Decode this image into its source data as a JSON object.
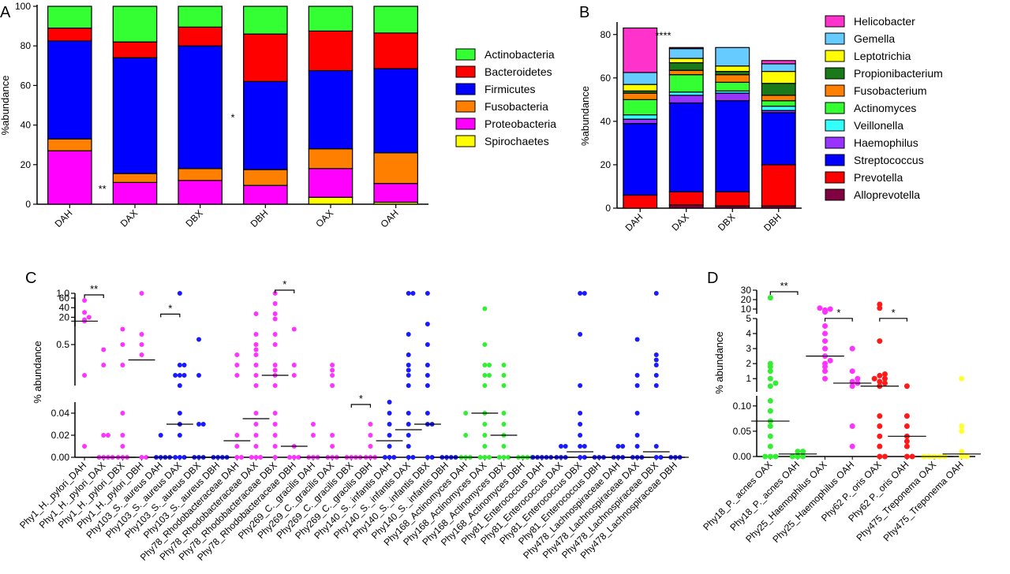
{
  "panels": {
    "A": {
      "label": "A",
      "type": "stacked-bar",
      "ylabel": "%abundance",
      "ylim": [
        0,
        100
      ],
      "yticks": [
        0,
        20,
        40,
        60,
        80,
        100
      ],
      "categories": [
        "DAH",
        "DAX",
        "DBX",
        "DBH",
        "OAX",
        "OAH"
      ],
      "series": [
        {
          "name": "Spirochaetes",
          "color": "#ffff00",
          "values": [
            0,
            0,
            0,
            0,
            3.5,
            1
          ]
        },
        {
          "name": "Proteobacteria",
          "color": "#ff00ff",
          "values": [
            27,
            11,
            12,
            9.5,
            14.5,
            9.5
          ]
        },
        {
          "name": "Fusobacteria",
          "color": "#ff8000",
          "values": [
            6,
            4.5,
            6,
            8,
            10,
            15.5
          ]
        },
        {
          "name": "Firmicutes",
          "color": "#0000ff",
          "values": [
            49.5,
            58.5,
            62,
            44.5,
            39.5,
            42.5
          ]
        },
        {
          "name": "Bacteroidetes",
          "color": "#ff0000",
          "values": [
            6.5,
            8,
            9.5,
            24,
            20,
            18
          ]
        },
        {
          "name": "Actinobacteria",
          "color": "#33ff33",
          "values": [
            11,
            18,
            10.5,
            14,
            12.5,
            13.5
          ]
        }
      ],
      "legend_order": [
        "Actinobacteria",
        "Bacteroidetes",
        "Firmicutes",
        "Fusobacteria",
        "Proteobacteria",
        "Spirochaetes"
      ],
      "annotations": [
        {
          "text": "**",
          "x_between": [
            "DAH",
            "DAX"
          ],
          "y": 6
        },
        {
          "text": "*",
          "x_between": [
            "DBX",
            "DBH"
          ],
          "y": 42
        }
      ]
    },
    "B": {
      "label": "B",
      "type": "stacked-bar",
      "ylabel": "%abundance",
      "ylim": [
        0,
        85
      ],
      "yticks": [
        0,
        20,
        40,
        60,
        80
      ],
      "categories": [
        "DAH",
        "DAX",
        "DBX",
        "DBH"
      ],
      "series": [
        {
          "name": "Alloprevotella",
          "color": "#800040",
          "values": [
            0,
            1.5,
            1,
            1
          ]
        },
        {
          "name": "Prevotella",
          "color": "#ff0000",
          "values": [
            6,
            6,
            6.5,
            19
          ]
        },
        {
          "name": "Streptococcus",
          "color": "#0000ff",
          "values": [
            33,
            41,
            42,
            24
          ]
        },
        {
          "name": "Haemophilus",
          "color": "#9933ff",
          "values": [
            2,
            3.5,
            3.5,
            1
          ]
        },
        {
          "name": "Veillonella",
          "color": "#33ffff",
          "values": [
            2,
            1.5,
            1,
            2
          ]
        },
        {
          "name": "Actinomyces",
          "color": "#33ff33",
          "values": [
            7,
            8,
            4,
            2.5
          ]
        },
        {
          "name": "Fusobacterium",
          "color": "#ff8000",
          "values": [
            3,
            2,
            3.5,
            2.5
          ]
        },
        {
          "name": "Propionibacterium",
          "color": "#1a7a1a",
          "values": [
            1,
            3.5,
            1.5,
            5.5
          ]
        },
        {
          "name": "Leptotrichia",
          "color": "#ffff00",
          "values": [
            3,
            2,
            2.5,
            5.5
          ]
        },
        {
          "name": "Gemella",
          "color": "#66ccff",
          "values": [
            5.5,
            4.5,
            8.5,
            3.5
          ]
        },
        {
          "name": "Helicobacter",
          "color": "#ff33cc",
          "values": [
            20.5,
            0.5,
            0,
            1.5
          ]
        }
      ],
      "legend_order": [
        "Helicobacter",
        "Gemella",
        "Leptotrichia",
        "Propionibacterium",
        "Fusobacterium",
        "Actinomyces",
        "Veillonella",
        "Haemophilus",
        "Streptococcus",
        "Prevotella",
        "Alloprevotella"
      ],
      "annotations": [
        {
          "text": "****",
          "x_between": [
            "DAH",
            "DAX"
          ],
          "y": 78
        }
      ]
    },
    "C": {
      "label": "C",
      "type": "scatter",
      "ylabel": "% abundance",
      "segments": [
        {
          "range": [
            0,
            0.05
          ],
          "ticks": [
            "0.00",
            "0.02",
            "0.04"
          ]
        },
        {
          "range": [
            0.1,
            1.0
          ],
          "ticks": [
            "0.5",
            "1.0"
          ]
        },
        {
          "range": [
            1,
            60
          ],
          "ticks": [
            "20",
            "40",
            "60"
          ]
        }
      ],
      "groups": [
        {
          "label": "Phy1_H._pylori_DAH",
          "color": "#ff33ff"
        },
        {
          "label": "Phy1_H._pylori_DAX",
          "color": "#ff33ff"
        },
        {
          "label": "Phy1_H._pylori_DBX",
          "color": "#ff33ff"
        },
        {
          "label": "Phy1_H._pylori_DBH",
          "color": "#ff33ff"
        },
        {
          "label": "Phy103_S._aureus DAH",
          "color": "#1a1aff"
        },
        {
          "label": "Phy103_S._aureus DAX",
          "color": "#1a1aff"
        },
        {
          "label": "Phy103_S._aureus DBX",
          "color": "#1a1aff"
        },
        {
          "label": "Phy103_S._aureus DBH",
          "color": "#1a1aff"
        },
        {
          "label": "Phy78_Rhodobacteraceae DAH",
          "color": "#ff33ff"
        },
        {
          "label": "Phy78_Rhodobacteraceae DAX",
          "color": "#ff33ff"
        },
        {
          "label": "Phy78_Rhodobacteraceae DBX",
          "color": "#ff33ff"
        },
        {
          "label": "Phy78_Rhodobacteraceae DBH",
          "color": "#ff33ff"
        },
        {
          "label": "Phy269_C._gracilis DAH",
          "color": "#ff33ff"
        },
        {
          "label": "Phy269_C._gracilis DAX",
          "color": "#ff33ff"
        },
        {
          "label": "Phy269_C._gracilis DBX",
          "color": "#ff33ff"
        },
        {
          "label": "Phy269_C._gracilis DBH",
          "color": "#ff33ff"
        },
        {
          "label": "Phy140_S._infantis DAH",
          "color": "#1a1aff"
        },
        {
          "label": "Phy140_S._infantis DAX",
          "color": "#1a1aff"
        },
        {
          "label": "Phy140_S._infantis DBX",
          "color": "#1a1aff"
        },
        {
          "label": "Phy140_S._infantis DBH",
          "color": "#1a1aff"
        },
        {
          "label": "Phy168_Actinomyces DAH",
          "color": "#33ee33"
        },
        {
          "label": "Phy168_Actinomyces DAX",
          "color": "#33ee33"
        },
        {
          "label": "Phy168_Actinomyces DBX",
          "color": "#33ee33"
        },
        {
          "label": "Phy168_Actinomyces DBH",
          "color": "#33ee33"
        },
        {
          "label": "Phy81_Enterococcus DAH",
          "color": "#1a1aff"
        },
        {
          "label": "Phy81_Enterococcus DAX",
          "color": "#1a1aff"
        },
        {
          "label": "Phy81_Enterococcus DBX",
          "color": "#1a1aff"
        },
        {
          "label": "Phy81_Enterococcus DBH",
          "color": "#1a1aff"
        },
        {
          "label": "Phy478_Lachnospiraceae DAH",
          "color": "#1a1aff"
        },
        {
          "label": "Phy478_Lachnospiraceae DAX",
          "color": "#1a1aff"
        },
        {
          "label": "Phy478_Lachnospiraceae DBX",
          "color": "#1a1aff"
        },
        {
          "label": "Phy478_Lachnospiraceae DBH",
          "color": "#1a1aff"
        }
      ],
      "points": [
        [
          0.01,
          0.2,
          12,
          15,
          20,
          30,
          55
        ],
        [
          0,
          0,
          0,
          0,
          0.02,
          0.02,
          0.3,
          0.45
        ],
        [
          0,
          0,
          0,
          0.01,
          0.02,
          0.04,
          0.3,
          0.5,
          0.65
        ],
        [
          0,
          0,
          0.4,
          0.5,
          0.6,
          1.0
        ],
        [
          0,
          0,
          0,
          0,
          0.02
        ],
        [
          0,
          0,
          0,
          0.02,
          0.03,
          0.04,
          0.1,
          0.2,
          0.2,
          0.2,
          0.3,
          0.3,
          1.0
        ],
        [
          0,
          0,
          0,
          0.03,
          0.03,
          0.2,
          0.55
        ],
        [
          0,
          0,
          0,
          0
        ],
        [
          0,
          0,
          0.01,
          0.02,
          0.2,
          0.3,
          0.4
        ],
        [
          0,
          0,
          0,
          0.01,
          0.02,
          0.03,
          0.04,
          0.1,
          0.2,
          0.3,
          0.4,
          0.45,
          0.5,
          0.6,
          0.8
        ],
        [
          0,
          0.01,
          0.02,
          0.03,
          0.04,
          0.1,
          0.2,
          0.25,
          0.3,
          0.5,
          0.6,
          0.75,
          0.8,
          0.9,
          1.0
        ],
        [
          0,
          0,
          0,
          0.01,
          0.2,
          0.3,
          0.65
        ],
        [
          0,
          0,
          0,
          0.02,
          0.03
        ],
        [
          0,
          0,
          0,
          0.01,
          0.02,
          0.1,
          0.2,
          0.25,
          0.3
        ],
        [
          0,
          0,
          0,
          0
        ],
        [
          0,
          0,
          0,
          0.01,
          0.02,
          0.03
        ],
        [
          0,
          0,
          0,
          0.01,
          0.02,
          0.03,
          0.04,
          0.05
        ],
        [
          0,
          0,
          0.01,
          0.02,
          0.03,
          0.04,
          0.1,
          0.2,
          0.25,
          0.3,
          0.4,
          0.6,
          1.0,
          1.0
        ],
        [
          0,
          0,
          0.03,
          0.03,
          0.04,
          0.1,
          0.2,
          0.3,
          0.5,
          0.7,
          1.0
        ],
        [
          0,
          0,
          0,
          0
        ],
        [
          0,
          0,
          0,
          0.02,
          0.04
        ],
        [
          0,
          0,
          0,
          0.01,
          0.02,
          0.03,
          0.04,
          0.1,
          0.2,
          0.2,
          0.3,
          0.3,
          0.5,
          0.85
        ],
        [
          0,
          0,
          0,
          0.01,
          0.02,
          0.03,
          0.04,
          0.1,
          0.2,
          0.3
        ],
        [
          0,
          0,
          0,
          0
        ],
        [
          0,
          0,
          0,
          0,
          0
        ],
        [
          0,
          0,
          0,
          0.01,
          0.01
        ],
        [
          0,
          0,
          0.01,
          0.01,
          0.02,
          0.03,
          0.04,
          0.1,
          0.6,
          1.0,
          1.0
        ],
        [
          0,
          0,
          0
        ],
        [
          0,
          0,
          0,
          0.01,
          0.01
        ],
        [
          0,
          0,
          0,
          0.01,
          0.02,
          0.04,
          0.1,
          0.2,
          0.55
        ],
        [
          0,
          0,
          0.01,
          0.1,
          0.2,
          0.3,
          0.35,
          0.4,
          1.0
        ],
        [
          0,
          0,
          0
        ]
      ],
      "medians": [
        12,
        0,
        0,
        0.35,
        0,
        0.03,
        0,
        0,
        0.015,
        0.035,
        0.2,
        0.01,
        0,
        0,
        0,
        0,
        0.015,
        0.025,
        0.03,
        0,
        0,
        0.04,
        0.02,
        0,
        0,
        0,
        0.005,
        0,
        0,
        0,
        0.005,
        0
      ],
      "annotations": [
        {
          "text": "**",
          "from": 0,
          "to": 1,
          "y": 60
        },
        {
          "text": "*",
          "from": 4,
          "to": 5,
          "y": 20
        },
        {
          "text": "*",
          "from": 10,
          "to": 11,
          "y": 1.0
        },
        {
          "text": "*",
          "from": 14,
          "to": 15,
          "y": 0.045
        }
      ]
    },
    "D": {
      "label": "D",
      "type": "scatter",
      "ylabel": "% abundance",
      "segments": [
        {
          "range": [
            0,
            0.12
          ],
          "ticks": [
            "0.00",
            "0.05",
            "0.10"
          ]
        },
        {
          "range": [
            0.12,
            5
          ],
          "ticks": [
            "1",
            "2",
            "3",
            "4",
            "5"
          ]
        },
        {
          "range": [
            5,
            30
          ],
          "ticks": [
            "10",
            "20",
            "30"
          ]
        }
      ],
      "groups": [
        {
          "label": "Phy18_P._acnes OAX",
          "color": "#33ee33"
        },
        {
          "label": "Phy18_P._acnes OAH",
          "color": "#33ee33"
        },
        {
          "label": "Phy25_Haemophilus OAX",
          "color": "#ff33ff"
        },
        {
          "label": "Phy25_Haemophilus OAH",
          "color": "#ff33ff"
        },
        {
          "label": "Phy62 P._oris OAX",
          "color": "#ff1a1a"
        },
        {
          "label": "Phy62 P._oris OAH",
          "color": "#ff1a1a"
        },
        {
          "label": "Phy475_Treponema OAX",
          "color": "#ffff33"
        },
        {
          "label": "Phy475_Treponema OAH",
          "color": "#ffff33"
        }
      ],
      "points": [
        [
          0,
          0,
          0,
          0.02,
          0.04,
          0.06,
          0.07,
          0.09,
          0.11,
          0.5,
          0.7,
          1.0,
          1.5,
          1.8,
          2.0,
          22
        ],
        [
          0,
          0,
          0,
          0.01,
          0.01
        ],
        [
          1,
          1.5,
          1.8,
          2,
          2.2,
          2.5,
          3,
          3.5,
          4,
          4.5,
          7,
          9,
          10,
          11
        ],
        [
          0.02,
          0.06,
          0.5,
          0.7,
          0.8,
          1,
          1.5,
          3
        ],
        [
          0,
          0,
          0.02,
          0.04,
          0.06,
          0.08,
          0.5,
          0.7,
          0.8,
          1,
          1,
          1.2,
          1.3,
          3.5,
          11,
          15
        ],
        [
          0,
          0,
          0.02,
          0.03,
          0.04,
          0.06,
          0.08,
          0.5
        ],
        [
          0,
          0,
          0,
          0,
          0
        ],
        [
          0,
          0,
          0.01,
          0.05,
          0.06,
          1.0
        ]
      ],
      "medians": [
        0.07,
        0.005,
        2.5,
        0.7,
        0.5,
        0.04,
        0,
        0.005
      ],
      "annotations": [
        {
          "text": "**",
          "from": 0,
          "to": 1,
          "y": 25
        },
        {
          "text": "*",
          "from": 2,
          "to": 3,
          "y": 4.8
        },
        {
          "text": "*",
          "from": 4,
          "to": 5,
          "y": 4.8
        }
      ]
    }
  }
}
